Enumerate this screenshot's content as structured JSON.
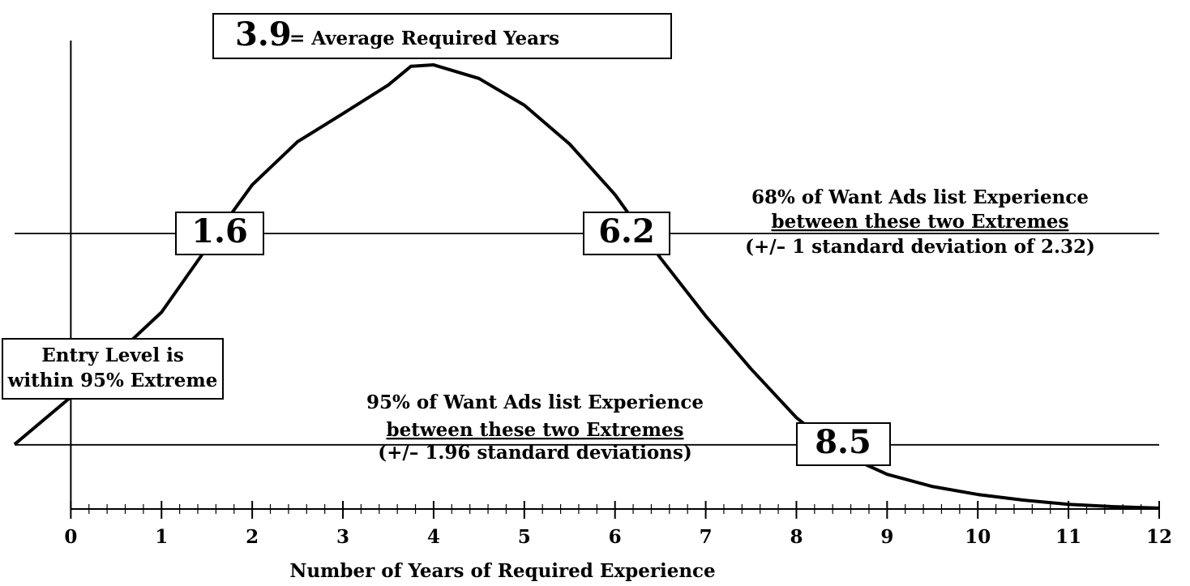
{
  "chart_data": {
    "type": "line",
    "x": [
      -0.62,
      0,
      1,
      1.6,
      2,
      2.5,
      3,
      3.5,
      3.75,
      4,
      4.5,
      5,
      5.5,
      6,
      6.5,
      7,
      7.5,
      8,
      8.5,
      9,
      9.5,
      10,
      10.5,
      11,
      11.5,
      12
    ],
    "values": [
      0.138,
      0.239,
      0.42,
      0.585,
      0.692,
      0.784,
      0.844,
      0.905,
      0.945,
      0.948,
      0.919,
      0.862,
      0.779,
      0.671,
      0.536,
      0.412,
      0.299,
      0.195,
      0.118,
      0.074,
      0.048,
      0.031,
      0.019,
      0.01,
      0.005,
      0.002
    ],
    "color": "#000000",
    "xlim": [
      -0.62,
      12
    ],
    "xticks": [
      0,
      1,
      2,
      3,
      4,
      5,
      6,
      7,
      8,
      9,
      10,
      11,
      12
    ],
    "minor_ticks_per_unit": 5,
    "ylim": [
      0,
      1
    ],
    "reference_lines": [
      0.588,
      0.137
    ],
    "xlabel": "Number of Years of Required Experience",
    "annotations": [
      [
        "3.9",
        "= Average Required Years"
      ],
      [
        "1.6"
      ],
      [
        "6.2"
      ],
      [
        "8.5"
      ],
      [
        "Entry Level is",
        "within 95% Extreme"
      ],
      [
        "68% of Want Ads list Experience",
        "between these two Extremes",
        "(+/– 1 standard deviation of  2.32)"
      ],
      [
        "95% of Want Ads list Experience",
        "between these two Extremes",
        "(+/– 1.96 standard deviations)"
      ]
    ]
  }
}
